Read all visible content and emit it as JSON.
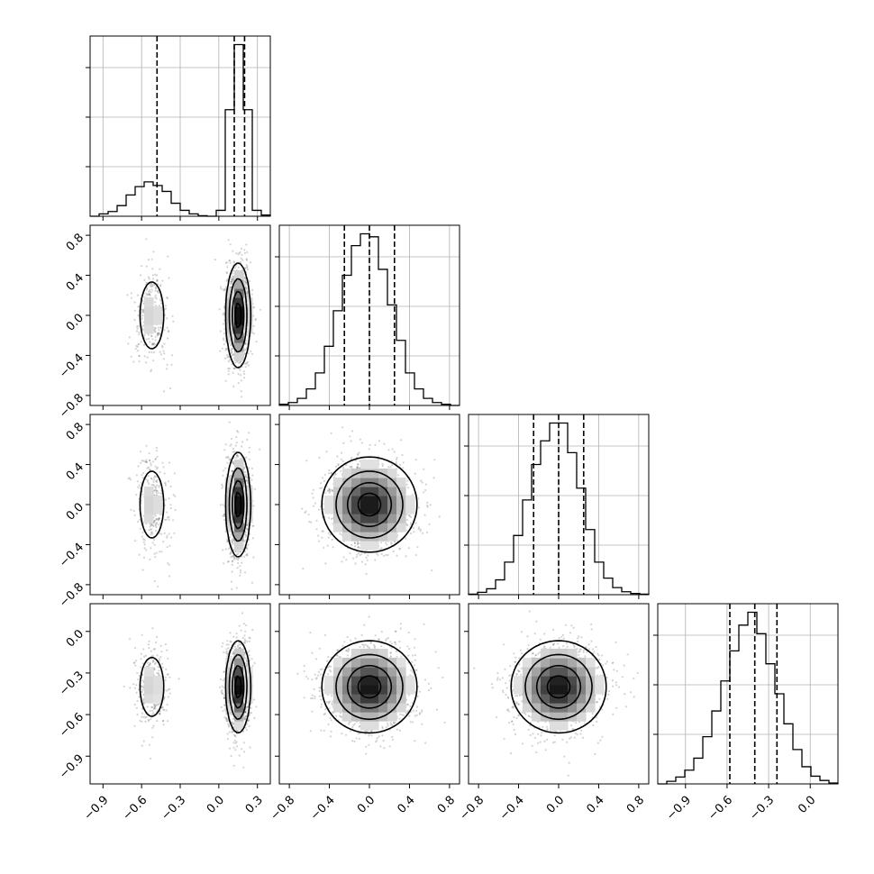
{
  "chart_data": {
    "type": "corner",
    "title": "",
    "grid": true,
    "color": "#000000",
    "params": [
      {
        "range": [
          -1.0,
          0.4
        ],
        "ticks": [
          -0.9,
          -0.6,
          -0.3,
          0.0,
          0.3
        ],
        "tick_labels": [
          "−0.9",
          "−0.6",
          "−0.3",
          "0.0",
          "0.3"
        ],
        "quantiles": [
          -0.48,
          0.12,
          0.2
        ]
      },
      {
        "range": [
          -0.9,
          0.9
        ],
        "ticks": [
          -0.8,
          -0.4,
          0.0,
          0.4,
          0.8
        ],
        "tick_labels": [
          "−0.8",
          "−0.4",
          "0.0",
          "0.4",
          "0.8"
        ],
        "quantiles": [
          -0.25,
          0.0,
          0.25
        ]
      },
      {
        "range": [
          -0.9,
          0.9
        ],
        "ticks": [
          -0.8,
          -0.4,
          0.0,
          0.4,
          0.8
        ],
        "tick_labels": [
          "−0.8",
          "−0.4",
          "0.0",
          "0.4",
          "0.8"
        ],
        "quantiles": [
          -0.25,
          0.0,
          0.25
        ]
      },
      {
        "range": [
          -1.1,
          0.2
        ],
        "ticks": [
          -0.9,
          -0.6,
          -0.3,
          0.0
        ],
        "tick_labels": [
          "−0.9",
          "−0.6",
          "−0.3",
          "0.0"
        ],
        "quantiles": [
          -0.58,
          -0.4,
          -0.24
        ]
      }
    ],
    "histograms": [
      {
        "param": 0,
        "bin_edges": [
          -1.0,
          -0.93,
          -0.86,
          -0.79,
          -0.72,
          -0.65,
          -0.58,
          -0.51,
          -0.44,
          -0.37,
          -0.3,
          -0.23,
          -0.16,
          -0.09,
          -0.02,
          0.05,
          0.12,
          0.19,
          0.26,
          0.33,
          0.4
        ],
        "counts": [
          0,
          4,
          8,
          18,
          36,
          50,
          58,
          52,
          42,
          22,
          10,
          4,
          1,
          0,
          10,
          180,
          290,
          180,
          10,
          2
        ]
      },
      {
        "param": 1,
        "bin_edges": [
          -0.9,
          -0.81,
          -0.72,
          -0.63,
          -0.54,
          -0.45,
          -0.36,
          -0.27,
          -0.18,
          -0.09,
          0.0,
          0.09,
          0.18,
          0.27,
          0.36,
          0.45,
          0.54,
          0.63,
          0.72,
          0.81,
          0.9
        ],
        "counts": [
          2,
          5,
          12,
          28,
          55,
          100,
          160,
          220,
          270,
          290,
          285,
          230,
          170,
          110,
          55,
          28,
          12,
          5,
          2,
          0
        ]
      },
      {
        "param": 2,
        "bin_edges": [
          -0.9,
          -0.81,
          -0.72,
          -0.63,
          -0.54,
          -0.45,
          -0.36,
          -0.27,
          -0.18,
          -0.09,
          0.0,
          0.09,
          0.18,
          0.27,
          0.36,
          0.45,
          0.54,
          0.63,
          0.72,
          0.81,
          0.9
        ],
        "counts": [
          1,
          4,
          10,
          25,
          55,
          100,
          160,
          220,
          260,
          290,
          290,
          240,
          180,
          110,
          55,
          28,
          12,
          5,
          2,
          1
        ]
      },
      {
        "param": 3,
        "bin_edges": [
          -1.1,
          -1.035,
          -0.97,
          -0.905,
          -0.84,
          -0.775,
          -0.71,
          -0.645,
          -0.58,
          -0.515,
          -0.45,
          -0.385,
          -0.32,
          -0.255,
          -0.19,
          -0.125,
          -0.06,
          0.005,
          0.07,
          0.135,
          0.2
        ],
        "counts": [
          0,
          3,
          8,
          16,
          30,
          55,
          85,
          120,
          155,
          185,
          200,
          175,
          140,
          105,
          70,
          40,
          20,
          9,
          4,
          1
        ]
      }
    ],
    "joint": [
      {
        "x_param": 0,
        "y_param": 1,
        "modes": [
          {
            "x": -0.52,
            "y": 0.0,
            "sx": 0.06,
            "sy": 0.22,
            "w": 0.22
          },
          {
            "x": 0.15,
            "y": 0.0,
            "sx": 0.04,
            "sy": 0.22,
            "w": 0.78
          }
        ]
      },
      {
        "x_param": 0,
        "y_param": 2,
        "modes": [
          {
            "x": -0.52,
            "y": 0.0,
            "sx": 0.06,
            "sy": 0.22,
            "w": 0.22
          },
          {
            "x": 0.15,
            "y": 0.0,
            "sx": 0.04,
            "sy": 0.22,
            "w": 0.78
          }
        ]
      },
      {
        "x_param": 0,
        "y_param": 3,
        "modes": [
          {
            "x": -0.52,
            "y": -0.4,
            "sx": 0.06,
            "sy": 0.14,
            "w": 0.22
          },
          {
            "x": 0.15,
            "y": -0.4,
            "sx": 0.04,
            "sy": 0.14,
            "w": 0.78
          }
        ]
      },
      {
        "x_param": 1,
        "y_param": 2,
        "modes": [
          {
            "x": 0.0,
            "y": 0.0,
            "sx": 0.2,
            "sy": 0.2,
            "w": 1.0
          }
        ]
      },
      {
        "x_param": 1,
        "y_param": 3,
        "modes": [
          {
            "x": 0.0,
            "y": -0.4,
            "sx": 0.2,
            "sy": 0.14,
            "w": 1.0
          }
        ]
      },
      {
        "x_param": 2,
        "y_param": 3,
        "modes": [
          {
            "x": 0.0,
            "y": -0.4,
            "sx": 0.2,
            "sy": 0.14,
            "w": 1.0
          }
        ]
      }
    ]
  }
}
